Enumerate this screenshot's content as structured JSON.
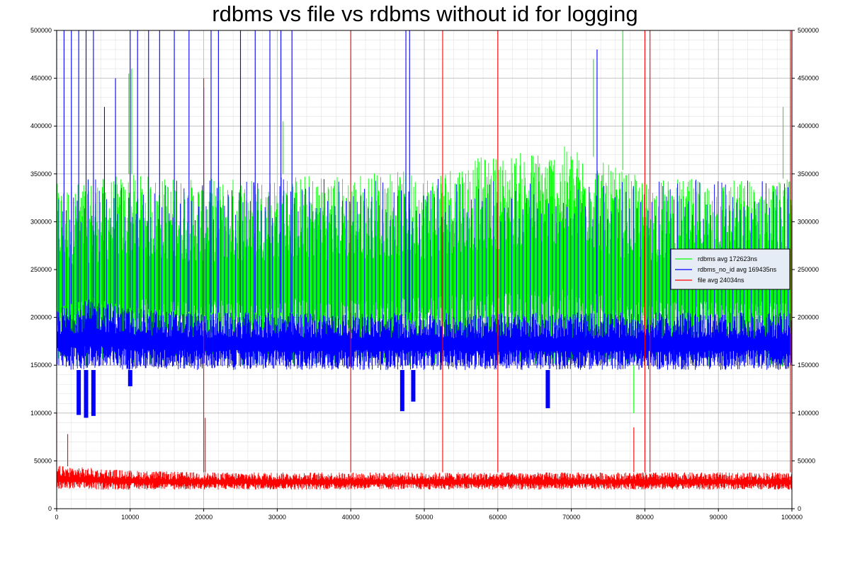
{
  "chart_data": {
    "type": "line",
    "title": "rdbms vs file vs  rdbms without id for logging",
    "xlim": [
      0,
      100000
    ],
    "ylim": [
      0,
      500000
    ],
    "x_ticks": [
      "0",
      "10000",
      "20000",
      "30000",
      "40000",
      "50000",
      "60000",
      "70000",
      "80000",
      "90000",
      "100000"
    ],
    "y_ticks": [
      "0",
      "50000",
      "100000",
      "150000",
      "200000",
      "250000",
      "300000",
      "350000",
      "400000",
      "450000",
      "500000"
    ],
    "grid": true,
    "legend_position": "right",
    "series": [
      {
        "name": "rdbms avg 172623ns",
        "color": "#00ff00",
        "band": {
          "x": [
            0,
            5000,
            10000,
            20000,
            30000,
            35000,
            40000,
            45000,
            50000,
            55000,
            60000,
            65000,
            70000,
            75000,
            80000,
            85000,
            90000,
            95000,
            100000
          ],
          "low": [
            145000,
            150000,
            150000,
            150000,
            150000,
            150000,
            150000,
            150000,
            150000,
            150000,
            150000,
            150000,
            150000,
            150000,
            150000,
            148000,
            148000,
            148000,
            148000
          ],
          "high": [
            340000,
            345000,
            350000,
            345000,
            350000,
            350000,
            350000,
            355000,
            350000,
            365000,
            370000,
            375000,
            380000,
            360000,
            345000,
            345000,
            345000,
            345000,
            345000
          ]
        },
        "spikes": [
          {
            "x": 9800,
            "y": 455000
          },
          {
            "x": 10200,
            "y": 460000
          },
          {
            "x": 30800,
            "y": 405000
          },
          {
            "x": 48000,
            "y": 280000
          },
          {
            "x": 66800,
            "y": 280000
          },
          {
            "x": 73000,
            "y": 470000
          },
          {
            "x": 77000,
            "y": 500000
          },
          {
            "x": 78500,
            "y": 100000
          },
          {
            "x": 98800,
            "y": 420000
          }
        ]
      },
      {
        "name": "rdbms_no_id avg 169435ns",
        "color": "#0000ff",
        "band": {
          "x": [
            0,
            5000,
            10000,
            20000,
            30000,
            40000,
            50000,
            60000,
            70000,
            80000,
            90000,
            100000
          ],
          "low": [
            145000,
            145000,
            145000,
            145000,
            145000,
            145000,
            145000,
            145000,
            145000,
            145000,
            145000,
            145000
          ],
          "high": [
            210000,
            220000,
            210000,
            205000,
            205000,
            205000,
            205000,
            205000,
            205000,
            205000,
            205000,
            205000
          ]
        },
        "spikes_low": 300000,
        "spikes_high": 345000,
        "spikes": [
          {
            "x": 0,
            "y": 500000
          },
          {
            "x": 1000,
            "y": 500000
          },
          {
            "x": 2000,
            "y": 500000
          },
          {
            "x": 3000,
            "y": 500000
          },
          {
            "x": 4000,
            "y": 500000
          },
          {
            "x": 5000,
            "y": 500000
          },
          {
            "x": 6500,
            "y": 420000
          },
          {
            "x": 8000,
            "y": 450000
          },
          {
            "x": 10000,
            "y": 500000
          },
          {
            "x": 11000,
            "y": 500000
          },
          {
            "x": 12500,
            "y": 500000
          },
          {
            "x": 14000,
            "y": 500000
          },
          {
            "x": 16000,
            "y": 500000
          },
          {
            "x": 18000,
            "y": 500000
          },
          {
            "x": 20000,
            "y": 440000
          },
          {
            "x": 21000,
            "y": 500000
          },
          {
            "x": 22000,
            "y": 500000
          },
          {
            "x": 25000,
            "y": 500000
          },
          {
            "x": 27000,
            "y": 500000
          },
          {
            "x": 29000,
            "y": 500000
          },
          {
            "x": 30500,
            "y": 500000
          },
          {
            "x": 32000,
            "y": 500000
          },
          {
            "x": 47500,
            "y": 500000
          },
          {
            "x": 48000,
            "y": 500000
          },
          {
            "x": 73500,
            "y": 480000
          },
          {
            "x": 100000,
            "y": 500000
          }
        ],
        "dips": [
          {
            "x": 3000,
            "y": 98000
          },
          {
            "x": 4000,
            "y": 95000
          },
          {
            "x": 5000,
            "y": 97000
          },
          {
            "x": 10000,
            "y": 128000
          },
          {
            "x": 47000,
            "y": 102000
          },
          {
            "x": 48500,
            "y": 112000
          },
          {
            "x": 66800,
            "y": 105000
          }
        ]
      },
      {
        "name": "file avg 24034ns",
        "color": "#ff0000",
        "band": {
          "x": [
            0,
            10000,
            20000,
            30000,
            40000,
            50000,
            60000,
            70000,
            80000,
            90000,
            100000
          ],
          "low": [
            20000,
            20000,
            20000,
            20000,
            20000,
            20000,
            20000,
            20000,
            20000,
            20000,
            20000
          ],
          "high": [
            45000,
            40000,
            38000,
            38000,
            38000,
            38000,
            38000,
            38000,
            38000,
            38000,
            38000
          ]
        },
        "spikes": [
          {
            "x": 0,
            "y": 100000
          },
          {
            "x": 1500,
            "y": 78000
          },
          {
            "x": 20000,
            "y": 450000
          },
          {
            "x": 20200,
            "y": 95000
          },
          {
            "x": 40000,
            "y": 500000
          },
          {
            "x": 52500,
            "y": 500000
          },
          {
            "x": 60000,
            "y": 500000
          },
          {
            "x": 78500,
            "y": 85000
          },
          {
            "x": 80000,
            "y": 500000
          },
          {
            "x": 80700,
            "y": 500000
          },
          {
            "x": 99800,
            "y": 500000
          }
        ]
      }
    ]
  }
}
